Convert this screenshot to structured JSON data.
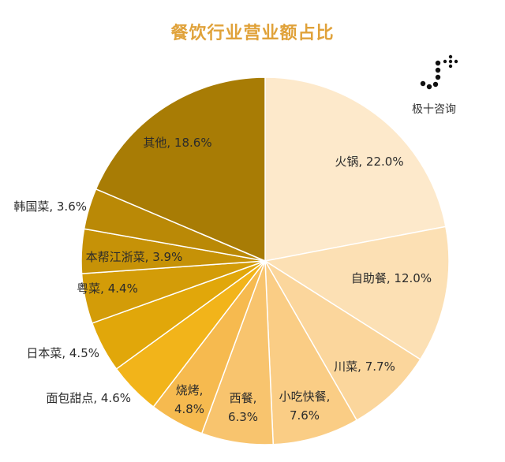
{
  "header": {
    "title": "餐饮行业营业额占比"
  },
  "logo": {
    "text": "极十咨询"
  },
  "chart_data": {
    "type": "pie",
    "title": "餐饮行业营业额占比",
    "unit": "%",
    "start": "12 o'clock",
    "direction": "clockwise",
    "slices": [
      {
        "label": "火锅, 22.0%",
        "value": 22.0,
        "color": "#FDE9CB"
      },
      {
        "label": "自助餐, 12.0%",
        "value": 12.0,
        "color": "#FCE0B4"
      },
      {
        "label": "川菜, 7.7%",
        "value": 7.7,
        "color": "#FBD69C"
      },
      {
        "label": "小吃快餐, 7.6%",
        "value": 7.6,
        "color": "#FACD85"
      },
      {
        "label": "西餐, 6.3%",
        "value": 6.3,
        "color": "#F8C46E"
      },
      {
        "label": "烧烤, 4.8%",
        "value": 4.8,
        "color": "#F6BA4F"
      },
      {
        "label": "面包甜点, 4.6%",
        "value": 4.6,
        "color": "#F2B41A"
      },
      {
        "label": "日本菜, 4.5%",
        "value": 4.5,
        "color": "#E1A70A"
      },
      {
        "label": "粤菜, 4.4%",
        "value": 4.4,
        "color": "#D39C08"
      },
      {
        "label": "本帮江浙菜, 3.9%",
        "value": 3.9,
        "color": "#C69207"
      },
      {
        "label": "韩国菜, 3.6%",
        "value": 3.6,
        "color": "#BA8906"
      },
      {
        "label": "其他, 18.6%",
        "value": 18.6,
        "color": "#A87C05"
      }
    ]
  }
}
